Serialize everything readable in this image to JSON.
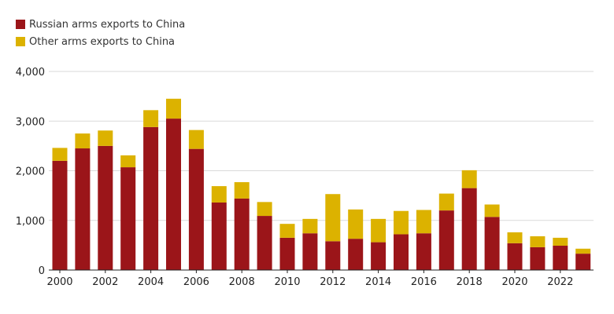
{
  "chart_data": {
    "type": "bar",
    "stacked": true,
    "title": "",
    "xlabel": "",
    "ylabel": "",
    "ylim": [
      0,
      4000
    ],
    "grid": true,
    "legend_position": "top-left",
    "x": [
      2000,
      2001,
      2002,
      2003,
      2004,
      2005,
      2006,
      2007,
      2008,
      2009,
      2010,
      2011,
      2012,
      2013,
      2014,
      2015,
      2016,
      2017,
      2018,
      2019,
      2020,
      2021,
      2022,
      2023
    ],
    "x_tick_labels": [
      "2000",
      "2002",
      "2004",
      "2006",
      "2008",
      "2010",
      "2012",
      "2014",
      "2016",
      "2018",
      "2020",
      "2022"
    ],
    "y_ticks": [
      0,
      1000,
      2000,
      3000,
      4000
    ],
    "y_tick_labels": [
      "0",
      "1,000",
      "2,000",
      "3,000",
      "4,000"
    ],
    "series": [
      {
        "name": "Russian arms exports to China",
        "color": "#9b1519",
        "values": [
          2200,
          2450,
          2500,
          2070,
          2880,
          3050,
          2440,
          1360,
          1440,
          1090,
          650,
          740,
          580,
          630,
          560,
          720,
          740,
          1200,
          1650,
          1070,
          540,
          460,
          490,
          330
        ]
      },
      {
        "name": "Other arms exports to China",
        "color": "#dcb200",
        "values": [
          260,
          300,
          310,
          240,
          340,
          400,
          380,
          330,
          330,
          280,
          280,
          290,
          950,
          590,
          470,
          470,
          470,
          340,
          360,
          250,
          220,
          220,
          160,
          100
        ]
      }
    ]
  }
}
